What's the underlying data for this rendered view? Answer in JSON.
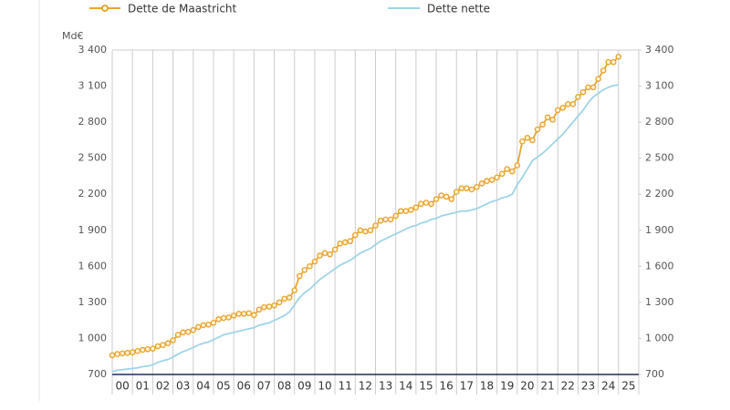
{
  "chart_data": {
    "type": "line",
    "unit": "Md€",
    "x": [
      2000,
      2000.25,
      2000.5,
      2000.75,
      2001,
      2001.25,
      2001.5,
      2001.75,
      2002,
      2002.25,
      2002.5,
      2002.75,
      2003,
      2003.25,
      2003.5,
      2003.75,
      2004,
      2004.25,
      2004.5,
      2004.75,
      2005,
      2005.25,
      2005.5,
      2005.75,
      2006,
      2006.25,
      2006.5,
      2006.75,
      2007,
      2007.25,
      2007.5,
      2007.75,
      2008,
      2008.25,
      2008.5,
      2008.75,
      2009,
      2009.25,
      2009.5,
      2009.75,
      2010,
      2010.25,
      2010.5,
      2010.75,
      2011,
      2011.25,
      2011.5,
      2011.75,
      2012,
      2012.25,
      2012.5,
      2012.75,
      2013,
      2013.25,
      2013.5,
      2013.75,
      2014,
      2014.25,
      2014.5,
      2014.75,
      2015,
      2015.25,
      2015.5,
      2015.75,
      2016,
      2016.25,
      2016.5,
      2016.75,
      2017,
      2017.25,
      2017.5,
      2017.75,
      2018,
      2018.25,
      2018.5,
      2018.75,
      2019,
      2019.25,
      2019.5,
      2019.75,
      2020,
      2020.25,
      2020.5,
      2020.75,
      2021,
      2021.25,
      2021.5,
      2021.75,
      2022,
      2022.25,
      2022.5,
      2022.75,
      2023,
      2023.25,
      2023.5,
      2023.75,
      2024,
      2024.25,
      2024.5,
      2024.75,
      2025
    ],
    "series": [
      {
        "name": "Dette de Maastricht",
        "color": "#e8a530",
        "markers": true,
        "values": [
          860,
          870,
          875,
          880,
          885,
          895,
          905,
          910,
          915,
          935,
          945,
          960,
          985,
          1030,
          1050,
          1055,
          1070,
          1095,
          1110,
          1115,
          1130,
          1160,
          1170,
          1175,
          1190,
          1205,
          1205,
          1210,
          1195,
          1240,
          1260,
          1265,
          1275,
          1300,
          1330,
          1340,
          1400,
          1520,
          1570,
          1600,
          1640,
          1690,
          1710,
          1700,
          1740,
          1790,
          1800,
          1810,
          1860,
          1900,
          1890,
          1900,
          1940,
          1980,
          1990,
          1990,
          2020,
          2060,
          2060,
          2070,
          2090,
          2120,
          2130,
          2120,
          2160,
          2190,
          2180,
          2160,
          2220,
          2250,
          2250,
          2240,
          2260,
          2290,
          2310,
          2320,
          2340,
          2370,
          2410,
          2390,
          2440,
          2640,
          2670,
          2650,
          2740,
          2780,
          2840,
          2820,
          2900,
          2920,
          2950,
          2950,
          3010,
          3050,
          3090,
          3090,
          3160,
          3230,
          3300,
          3300,
          3345
        ]
      },
      {
        "name": "Dette nette",
        "color": "#9fd4e6",
        "markers": false,
        "values": [
          725,
          735,
          740,
          745,
          750,
          755,
          765,
          770,
          780,
          800,
          815,
          825,
          845,
          870,
          890,
          905,
          925,
          945,
          960,
          970,
          990,
          1010,
          1030,
          1040,
          1050,
          1060,
          1070,
          1080,
          1090,
          1110,
          1120,
          1130,
          1150,
          1170,
          1190,
          1220,
          1280,
          1340,
          1380,
          1410,
          1450,
          1490,
          1520,
          1550,
          1580,
          1610,
          1630,
          1650,
          1680,
          1710,
          1730,
          1750,
          1780,
          1810,
          1830,
          1850,
          1870,
          1890,
          1910,
          1930,
          1940,
          1960,
          1970,
          1990,
          2000,
          2020,
          2030,
          2040,
          2050,
          2060,
          2060,
          2070,
          2080,
          2100,
          2120,
          2140,
          2150,
          2170,
          2180,
          2200,
          2280,
          2340,
          2410,
          2480,
          2510,
          2540,
          2580,
          2620,
          2660,
          2700,
          2750,
          2800,
          2850,
          2900,
          2960,
          3010,
          3040,
          3070,
          3090,
          3105,
          3110
        ]
      }
    ],
    "xlim": [
      2000,
      2026
    ],
    "xticks": [
      {
        "value": 2000,
        "label": "00"
      },
      {
        "value": 2001,
        "label": "01"
      },
      {
        "value": 2002,
        "label": "02"
      },
      {
        "value": 2003,
        "label": "03"
      },
      {
        "value": 2004,
        "label": "04"
      },
      {
        "value": 2005,
        "label": "05"
      },
      {
        "value": 2006,
        "label": "06"
      },
      {
        "value": 2007,
        "label": "07"
      },
      {
        "value": 2008,
        "label": "08"
      },
      {
        "value": 2009,
        "label": "09"
      },
      {
        "value": 2010,
        "label": "10"
      },
      {
        "value": 2011,
        "label": "11"
      },
      {
        "value": 2012,
        "label": "12"
      },
      {
        "value": 2013,
        "label": "13"
      },
      {
        "value": 2014,
        "label": "14"
      },
      {
        "value": 2015,
        "label": "15"
      },
      {
        "value": 2016,
        "label": "16"
      },
      {
        "value": 2017,
        "label": "17"
      },
      {
        "value": 2018,
        "label": "18"
      },
      {
        "value": 2019,
        "label": "19"
      },
      {
        "value": 2020,
        "label": "20"
      },
      {
        "value": 2021,
        "label": "21"
      },
      {
        "value": 2022,
        "label": "22"
      },
      {
        "value": 2023,
        "label": "23"
      },
      {
        "value": 2024,
        "label": "24"
      },
      {
        "value": 2025,
        "label": "25"
      }
    ],
    "ylim": [
      700,
      3400
    ],
    "yticks": [
      700,
      {
        "value": 1000,
        "label": "1 000"
      },
      {
        "value": 1300,
        "label": "1 300"
      },
      {
        "value": 1600,
        "label": "1 600"
      },
      {
        "value": 1900,
        "label": "1 900"
      },
      {
        "value": 2200,
        "label": "2 200"
      },
      {
        "value": 2500,
        "label": "2 500"
      },
      {
        "value": 2800,
        "label": "2 800"
      },
      {
        "value": 3100,
        "label": "3 100"
      },
      {
        "value": 3400,
        "label": "3 400"
      }
    ],
    "grid": true
  }
}
